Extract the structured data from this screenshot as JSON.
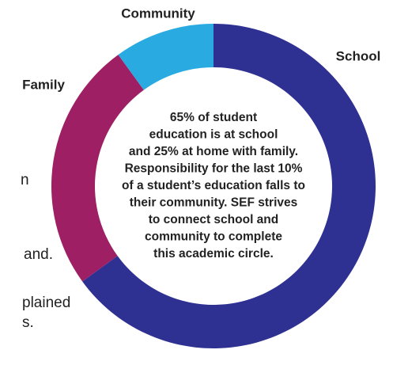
{
  "chart_data": {
    "type": "donut",
    "categories": [
      "School",
      "Family",
      "Community"
    ],
    "values": [
      65,
      25,
      10
    ],
    "colors": [
      "#2e3192",
      "#9e1f63",
      "#29abe2"
    ],
    "center_text": [
      "65% of student",
      "education is at school",
      "and 25% at home with family.",
      "Responsibility for the last 10%",
      "of a student’s education falls to",
      "their community. SEF strives",
      "to connect school and",
      "community to complete",
      "this academic circle."
    ]
  },
  "background_text": [
    "n",
    "and.",
    "plained",
    "s."
  ]
}
